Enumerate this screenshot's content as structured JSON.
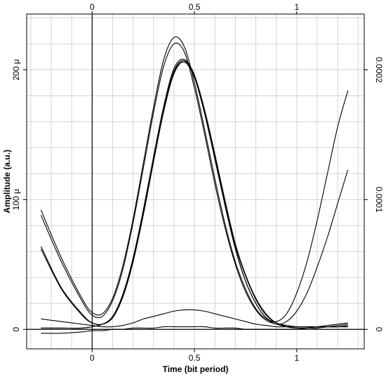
{
  "chart_data": {
    "type": "line",
    "title": "",
    "xlabel": "Time (bit period)",
    "ylabel": "Amplitude (a.u.)",
    "xlim": [
      -0.32,
      1.33
    ],
    "ylim": [
      -1.5e-05,
      0.000243
    ],
    "y2lim": [
      -1.5e-05,
      0.000243
    ],
    "x_ticks": [
      {
        "value": 0,
        "label": "0"
      },
      {
        "value": 0.5,
        "label": "0.5"
      },
      {
        "value": 1,
        "label": "1"
      }
    ],
    "x_top_ticks": [
      {
        "value": 0,
        "label": "0"
      },
      {
        "value": 0.5,
        "label": "0.5"
      },
      {
        "value": 1,
        "label": "1"
      }
    ],
    "y_ticks": [
      {
        "value": 0,
        "label": "0"
      },
      {
        "value": 0.0001,
        "label": "100 μ"
      },
      {
        "value": 0.0002,
        "label": "200 μ"
      }
    ],
    "y2_ticks": [
      {
        "value": 0,
        "label": "0"
      },
      {
        "value": 0.0001,
        "label": "0.0001"
      },
      {
        "value": 0.0002,
        "label": "0.0002"
      }
    ],
    "grid": true,
    "legend": "none",
    "series": [
      {
        "x": [
          -0.25,
          -0.15,
          -0.05,
          0,
          0.05,
          0.1,
          0.15,
          0.2,
          0.25,
          0.3,
          0.35,
          0.4,
          0.45,
          0.5,
          0.55,
          0.6,
          0.65,
          0.7,
          0.75,
          0.8,
          0.85,
          0.9,
          0.95,
          1,
          1.05,
          1.1,
          1.15,
          1.2,
          1.25
        ],
        "y": [
          9.2e-05,
          5.5e-05,
          2.4e-05,
          1.3e-05,
          1.2e-05,
          2.4e-05,
          4.9e-05,
          8.5e-05,
          0.000128,
          0.000171,
          0.000208,
          0.000225,
          0.000218,
          0.00019,
          0.000154,
          0.000116,
          8.1e-05,
          5.2e-05,
          3.1e-05,
          1.6e-05,
          8e-06,
          5e-06,
          2e-06,
          1e-06,
          1e-06,
          1e-06,
          2e-06,
          3e-06,
          4e-06
        ]
      },
      {
        "x": [
          -0.25,
          -0.15,
          -0.05,
          0,
          0.05,
          0.1,
          0.15,
          0.2,
          0.25,
          0.3,
          0.35,
          0.4,
          0.45,
          0.5,
          0.55,
          0.6,
          0.65,
          0.7,
          0.75,
          0.8,
          0.85,
          0.9,
          0.95,
          1,
          1.05,
          1.1,
          1.15,
          1.2,
          1.25
        ],
        "y": [
          8.8e-05,
          5.2e-05,
          2.2e-05,
          1.1e-05,
          1e-05,
          2.2e-05,
          4.6e-05,
          8.2e-05,
          0.000124,
          0.000167,
          0.000203,
          0.00022,
          0.000214,
          0.000186,
          0.00015,
          0.000112,
          7.8e-05,
          5e-05,
          2.9e-05,
          1.5e-05,
          7e-06,
          4e-06,
          2e-06,
          1e-06,
          1e-06,
          1e-06,
          2e-06,
          2e-06,
          3e-06
        ]
      },
      {
        "x": [
          -0.25,
          -0.15,
          -0.05,
          0,
          0.05,
          0.1,
          0.15,
          0.2,
          0.25,
          0.3,
          0.35,
          0.4,
          0.45,
          0.5,
          0.55,
          0.6,
          0.65,
          0.7,
          0.75,
          0.8,
          0.85,
          0.9,
          0.95,
          1,
          1.05,
          1.1,
          1.15,
          1.2,
          1.25
        ],
        "y": [
          6.4e-05,
          3.2e-05,
          1.2e-05,
          5e-06,
          4e-06,
          1e-05,
          2.7e-05,
          5.5e-05,
          9.2e-05,
          0.000133,
          0.000172,
          0.000201,
          0.000208,
          0.000196,
          0.000169,
          0.000135,
          9.9e-05,
          6.6e-05,
          4.2e-05,
          2.4e-05,
          1.2e-05,
          5e-06,
          3e-06,
          2e-06,
          2e-06,
          2e-06,
          2e-06,
          2e-06,
          2e-06
        ]
      },
      {
        "x": [
          -0.25,
          -0.15,
          -0.05,
          0,
          0.05,
          0.1,
          0.15,
          0.2,
          0.25,
          0.3,
          0.35,
          0.4,
          0.45,
          0.5,
          0.55,
          0.6,
          0.65,
          0.7,
          0.75,
          0.8,
          0.85,
          0.9,
          0.95,
          1,
          1.05,
          1.1,
          1.15,
          1.2,
          1.25
        ],
        "y": [
          6.2e-05,
          3.1e-05,
          1.1e-05,
          5e-06,
          4e-06,
          9e-06,
          2.5e-05,
          5.2e-05,
          8.9e-05,
          0.00013,
          0.00017,
          0.000199,
          0.000207,
          0.000195,
          0.000168,
          0.000134,
          9.8e-05,
          6.5e-05,
          4.1e-05,
          2.3e-05,
          1.1e-05,
          5e-06,
          3e-06,
          2e-06,
          2e-06,
          2e-06,
          2e-06,
          2e-06,
          2e-06
        ]
      },
      {
        "x": [
          -0.25,
          -0.15,
          -0.05,
          0,
          0.05,
          0.1,
          0.15,
          0.2,
          0.25,
          0.3,
          0.35,
          0.4,
          0.45,
          0.5,
          0.55,
          0.6,
          0.65,
          0.7,
          0.75,
          0.8,
          0.85,
          0.9,
          0.95,
          1,
          1.05,
          1.1,
          1.15,
          1.2,
          1.25
        ],
        "y": [
          1e-06,
          1e-06,
          1e-06,
          2e-06,
          4e-06,
          9e-06,
          2.5e-05,
          5.2e-05,
          8.8e-05,
          0.000129,
          0.000168,
          0.000197,
          0.000206,
          0.000194,
          0.000166,
          0.000131,
          9.5e-05,
          6.2e-05,
          3.7e-05,
          2e-05,
          9e-06,
          6e-06,
          1.2e-05,
          2.8e-05,
          5.2e-05,
          8.4e-05,
          0.00012,
          0.000156,
          0.000184
        ]
      },
      {
        "x": [
          -0.25,
          -0.15,
          -0.05,
          0,
          0.05,
          0.1,
          0.15,
          0.2,
          0.25,
          0.3,
          0.35,
          0.4,
          0.45,
          0.5,
          0.55,
          0.6,
          0.65,
          0.7,
          0.75,
          0.8,
          0.85,
          0.9,
          0.95,
          1,
          1.05,
          1.1,
          1.15,
          1.2,
          1.25
        ],
        "y": [
          1e-06,
          1e-06,
          1e-06,
          2e-06,
          4e-06,
          9e-06,
          2.6e-05,
          5.3e-05,
          8.9e-05,
          0.00013,
          0.000169,
          0.000198,
          0.000207,
          0.000195,
          0.000167,
          0.000132,
          9.6e-05,
          6.3e-05,
          3.7e-05,
          2e-05,
          9e-06,
          4e-06,
          6e-06,
          1.4e-05,
          2.8e-05,
          4.8e-05,
          7.1e-05,
          9.7e-05,
          0.000123
        ]
      },
      {
        "x": [
          -0.25,
          -0.15,
          -0.05,
          0,
          0.05,
          0.1,
          0.15,
          0.2,
          0.25,
          0.3,
          0.35,
          0.4,
          0.45,
          0.5,
          0.55,
          0.6,
          0.65,
          0.7,
          0.75,
          0.8,
          0.85,
          0.9,
          0.95,
          1,
          1.05,
          1.1,
          1.15,
          1.2,
          1.25
        ],
        "y": [
          8e-06,
          6e-06,
          4e-06,
          3e-06,
          2e-06,
          2e-06,
          3e-06,
          5e-06,
          8e-06,
          1e-05,
          1.2e-05,
          1.4e-05,
          1.5e-05,
          1.5e-05,
          1.4e-05,
          1.2e-05,
          1e-05,
          8e-06,
          6e-06,
          4e-06,
          3e-06,
          2e-06,
          2e-06,
          2e-06,
          2e-06,
          2e-06,
          2e-06,
          2e-06,
          3e-06
        ]
      },
      {
        "x": [
          -0.25,
          -0.15,
          -0.05,
          0,
          0.05,
          0.1,
          0.15,
          0.2,
          0.25,
          0.3,
          0.35,
          0.4,
          0.45,
          0.5,
          0.55,
          0.6,
          0.65,
          0.7,
          0.75,
          0.8,
          0.85,
          0.9,
          0.95,
          1,
          1.05,
          1.1,
          1.15,
          1.2,
          1.25
        ],
        "y": [
          -3e-06,
          -3e-06,
          -2e-06,
          -1e-06,
          -1e-06,
          0,
          0,
          1e-06,
          1e-06,
          1e-06,
          2e-06,
          2e-06,
          2e-06,
          2e-06,
          2e-06,
          1e-06,
          1e-06,
          1e-06,
          0,
          0,
          0,
          0,
          0,
          0,
          1e-06,
          2e-06,
          3e-06,
          4e-06,
          5e-06
        ]
      }
    ]
  }
}
